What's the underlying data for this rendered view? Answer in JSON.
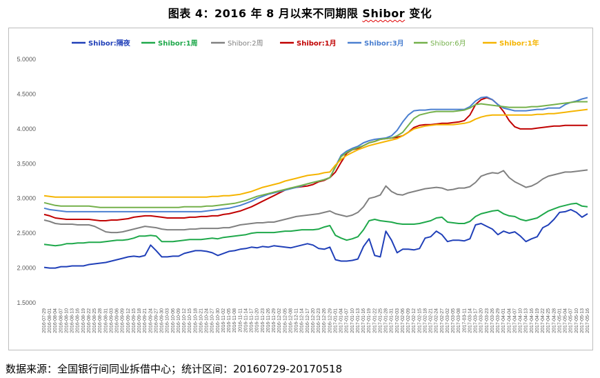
{
  "title": "图表 4：2016 年 8 月以来不同期限 Shibor 变化",
  "title_parts": {
    "prefix": "图表 4：2016 年 8 月以来不同期限 ",
    "squiggle": "Shibor",
    "suffix": " 变化"
  },
  "source_note": "数据来源：全国银行间同业拆借中心；统计区间：20160729-20170518",
  "colors": {
    "on": "#1f3fb8",
    "w1": "#1ea84a",
    "w2": "#808080",
    "m1": "#c00000",
    "m3": "#4a7fd0",
    "m6": "#74b04a",
    "y1": "#f5b400"
  },
  "chart_data": {
    "type": "line",
    "xlabel": "",
    "ylabel": "",
    "ylim": [
      1.5,
      5.0
    ],
    "yticks": [
      "1.5000",
      "2.0000",
      "2.5000",
      "3.0000",
      "3.5000",
      "4.0000",
      "4.5000",
      "5.0000"
    ],
    "grid": false,
    "legend_position": "top",
    "x": [
      "2016-07-29",
      "2016-08-01",
      "2016-08-04",
      "2016-08-07",
      "2016-08-10",
      "2016-08-13",
      "2016-08-16",
      "2016-08-19",
      "2016-08-22",
      "2016-08-25",
      "2016-08-28",
      "2016-08-31",
      "2016-09-03",
      "2016-09-06",
      "2016-09-09",
      "2016-09-12",
      "2016-09-15",
      "2016-09-18",
      "2016-09-21",
      "2016-09-24",
      "2016-09-27",
      "2016-09-30",
      "2016-10-03",
      "2016-10-06",
      "2016-10-09",
      "2016-10-12",
      "2016-10-15",
      "2016-10-18",
      "2016-10-21",
      "2016-10-24",
      "2016-10-27",
      "2016-10-30",
      "2016-11-02",
      "2016-11-05",
      "2016-11-08",
      "2016-11-11",
      "2016-11-14",
      "2016-11-17",
      "2016-11-20",
      "2016-11-23",
      "2016-11-26",
      "2016-11-29",
      "2016-12-02",
      "2016-12-05",
      "2016-12-08",
      "2016-12-11",
      "2016-12-14",
      "2016-12-17",
      "2016-12-20",
      "2016-12-23",
      "2016-12-26",
      "2016-12-29",
      "2017-01-01",
      "2017-01-04",
      "2017-01-07",
      "2017-01-10",
      "2017-01-13",
      "2017-01-16",
      "2017-01-19",
      "2017-01-22",
      "2017-01-25",
      "2017-01-28",
      "2017-01-31",
      "2017-02-03",
      "2017-02-06",
      "2017-02-09",
      "2017-02-12",
      "2017-02-15",
      "2017-02-18",
      "2017-02-21",
      "2017-02-24",
      "2017-02-27",
      "2017-03-02",
      "2017-03-05",
      "2017-03-08",
      "2017-03-11",
      "2017-03-14",
      "2017-03-17",
      "2017-03-20",
      "2017-03-23",
      "2017-03-26",
      "2017-03-29",
      "2017-04-01",
      "2017-04-04",
      "2017-04-07",
      "2017-04-10",
      "2017-04-13",
      "2017-04-16",
      "2017-04-19",
      "2017-04-22",
      "2017-04-25",
      "2017-04-28",
      "2017-05-01",
      "2017-05-04",
      "2017-05-07",
      "2017-05-10",
      "2017-05-13",
      "2017-05-16"
    ],
    "series": [
      {
        "name": "Shibor:隔夜",
        "color_key": "on",
        "values": [
          2.01,
          2.0,
          2.0,
          2.02,
          2.02,
          2.03,
          2.03,
          2.03,
          2.05,
          2.06,
          2.07,
          2.08,
          2.1,
          2.12,
          2.14,
          2.16,
          2.17,
          2.16,
          2.18,
          2.33,
          2.25,
          2.16,
          2.16,
          2.17,
          2.17,
          2.21,
          2.23,
          2.25,
          2.25,
          2.24,
          2.22,
          2.18,
          2.21,
          2.24,
          2.25,
          2.27,
          2.28,
          2.3,
          2.29,
          2.31,
          2.3,
          2.32,
          2.31,
          2.3,
          2.29,
          2.31,
          2.33,
          2.35,
          2.33,
          2.28,
          2.27,
          2.3,
          2.12,
          2.1,
          2.1,
          2.11,
          2.13,
          2.31,
          2.42,
          2.18,
          2.16,
          2.53,
          2.4,
          2.22,
          2.27,
          2.27,
          2.26,
          2.28,
          2.43,
          2.45,
          2.53,
          2.48,
          2.38,
          2.4,
          2.4,
          2.39,
          2.42,
          2.62,
          2.64,
          2.6,
          2.56,
          2.48,
          2.53,
          2.5,
          2.52,
          2.46,
          2.38,
          2.42,
          2.45,
          2.58,
          2.62,
          2.7,
          2.8,
          2.81,
          2.84,
          2.8,
          2.73,
          2.78
        ]
      },
      {
        "name": "Shibor:1周",
        "color_key": "w1",
        "values": [
          2.34,
          2.33,
          2.32,
          2.33,
          2.35,
          2.35,
          2.36,
          2.36,
          2.37,
          2.37,
          2.37,
          2.38,
          2.39,
          2.4,
          2.4,
          2.41,
          2.43,
          2.46,
          2.46,
          2.47,
          2.46,
          2.38,
          2.38,
          2.38,
          2.39,
          2.4,
          2.41,
          2.41,
          2.41,
          2.42,
          2.43,
          2.42,
          2.44,
          2.45,
          2.46,
          2.47,
          2.48,
          2.5,
          2.51,
          2.51,
          2.51,
          2.51,
          2.52,
          2.53,
          2.53,
          2.54,
          2.55,
          2.55,
          2.55,
          2.56,
          2.59,
          2.61,
          2.47,
          2.43,
          2.4,
          2.42,
          2.45,
          2.55,
          2.68,
          2.7,
          2.68,
          2.67,
          2.66,
          2.64,
          2.63,
          2.63,
          2.63,
          2.64,
          2.66,
          2.68,
          2.72,
          2.73,
          2.66,
          2.65,
          2.64,
          2.64,
          2.67,
          2.74,
          2.78,
          2.8,
          2.82,
          2.83,
          2.78,
          2.75,
          2.74,
          2.7,
          2.68,
          2.7,
          2.72,
          2.77,
          2.82,
          2.85,
          2.88,
          2.9,
          2.92,
          2.93,
          2.89,
          2.88
        ]
      },
      {
        "name": "Shibor:2周",
        "color_key": "w2",
        "values": [
          2.69,
          2.67,
          2.64,
          2.63,
          2.63,
          2.63,
          2.62,
          2.62,
          2.62,
          2.6,
          2.56,
          2.52,
          2.51,
          2.51,
          2.52,
          2.54,
          2.56,
          2.58,
          2.6,
          2.59,
          2.58,
          2.56,
          2.55,
          2.55,
          2.55,
          2.55,
          2.56,
          2.56,
          2.57,
          2.57,
          2.57,
          2.57,
          2.58,
          2.58,
          2.6,
          2.62,
          2.63,
          2.64,
          2.65,
          2.65,
          2.66,
          2.66,
          2.68,
          2.7,
          2.72,
          2.74,
          2.75,
          2.76,
          2.77,
          2.78,
          2.8,
          2.82,
          2.78,
          2.76,
          2.74,
          2.76,
          2.8,
          2.88,
          3.0,
          3.02,
          3.05,
          3.18,
          3.1,
          3.06,
          3.05,
          3.08,
          3.1,
          3.12,
          3.14,
          3.15,
          3.16,
          3.15,
          3.12,
          3.13,
          3.15,
          3.15,
          3.17,
          3.23,
          3.32,
          3.35,
          3.37,
          3.36,
          3.4,
          3.3,
          3.24,
          3.2,
          3.16,
          3.18,
          3.22,
          3.28,
          3.32,
          3.34,
          3.36,
          3.38,
          3.38,
          3.39,
          3.4,
          3.41
        ]
      },
      {
        "name": "Shibor:1月",
        "color_key": "m1",
        "values": [
          2.77,
          2.75,
          2.72,
          2.71,
          2.7,
          2.7,
          2.7,
          2.7,
          2.7,
          2.69,
          2.68,
          2.68,
          2.69,
          2.69,
          2.7,
          2.71,
          2.73,
          2.74,
          2.75,
          2.75,
          2.74,
          2.73,
          2.72,
          2.72,
          2.72,
          2.72,
          2.73,
          2.73,
          2.74,
          2.74,
          2.75,
          2.75,
          2.77,
          2.78,
          2.8,
          2.82,
          2.85,
          2.88,
          2.92,
          2.96,
          3.0,
          3.04,
          3.08,
          3.12,
          3.15,
          3.16,
          3.17,
          3.18,
          3.2,
          3.24,
          3.26,
          3.3,
          3.38,
          3.52,
          3.65,
          3.7,
          3.72,
          3.76,
          3.8,
          3.82,
          3.85,
          3.86,
          3.87,
          3.88,
          3.9,
          3.95,
          4.02,
          4.05,
          4.06,
          4.06,
          4.07,
          4.08,
          4.08,
          4.09,
          4.1,
          4.12,
          4.2,
          4.35,
          4.42,
          4.45,
          4.42,
          4.35,
          4.25,
          4.12,
          4.03,
          4.0,
          4.0,
          4.0,
          4.01,
          4.02,
          4.03,
          4.04,
          4.04,
          4.05,
          4.05,
          4.05,
          4.05,
          4.05
        ]
      },
      {
        "name": "Shibor:3月",
        "color_key": "m3",
        "values": [
          2.86,
          2.84,
          2.83,
          2.82,
          2.81,
          2.81,
          2.81,
          2.81,
          2.81,
          2.81,
          2.81,
          2.81,
          2.81,
          2.81,
          2.81,
          2.81,
          2.81,
          2.81,
          2.81,
          2.81,
          2.81,
          2.81,
          2.81,
          2.81,
          2.81,
          2.81,
          2.81,
          2.81,
          2.81,
          2.82,
          2.83,
          2.84,
          2.85,
          2.86,
          2.88,
          2.9,
          2.93,
          2.96,
          3.0,
          3.03,
          3.06,
          3.08,
          3.1,
          3.12,
          3.14,
          3.16,
          3.18,
          3.21,
          3.23,
          3.25,
          3.27,
          3.3,
          3.46,
          3.62,
          3.68,
          3.72,
          3.75,
          3.8,
          3.83,
          3.85,
          3.86,
          3.87,
          3.9,
          3.98,
          4.1,
          4.2,
          4.26,
          4.27,
          4.27,
          4.28,
          4.28,
          4.28,
          4.28,
          4.28,
          4.28,
          4.28,
          4.32,
          4.4,
          4.45,
          4.46,
          4.42,
          4.35,
          4.3,
          4.28,
          4.26,
          4.26,
          4.26,
          4.27,
          4.28,
          4.28,
          4.3,
          4.3,
          4.3,
          4.35,
          4.38,
          4.4,
          4.43,
          4.45
        ]
      },
      {
        "name": "Shibor:6月",
        "color_key": "m6",
        "values": [
          2.94,
          2.92,
          2.9,
          2.89,
          2.89,
          2.89,
          2.89,
          2.89,
          2.89,
          2.88,
          2.87,
          2.87,
          2.87,
          2.87,
          2.87,
          2.87,
          2.87,
          2.87,
          2.87,
          2.87,
          2.87,
          2.87,
          2.87,
          2.87,
          2.87,
          2.88,
          2.88,
          2.88,
          2.88,
          2.89,
          2.89,
          2.9,
          2.91,
          2.92,
          2.93,
          2.95,
          2.97,
          3.0,
          3.03,
          3.05,
          3.07,
          3.09,
          3.11,
          3.13,
          3.15,
          3.17,
          3.19,
          3.21,
          3.23,
          3.25,
          3.27,
          3.3,
          3.45,
          3.6,
          3.66,
          3.7,
          3.73,
          3.76,
          3.8,
          3.82,
          3.85,
          3.86,
          3.87,
          3.9,
          3.95,
          4.05,
          4.15,
          4.2,
          4.22,
          4.24,
          4.25,
          4.25,
          4.25,
          4.25,
          4.26,
          4.27,
          4.3,
          4.35,
          4.36,
          4.35,
          4.34,
          4.33,
          4.32,
          4.31,
          4.31,
          4.31,
          4.31,
          4.32,
          4.32,
          4.33,
          4.34,
          4.35,
          4.36,
          4.37,
          4.38,
          4.39,
          4.39,
          4.39
        ]
      },
      {
        "name": "Shibor:1年",
        "color_key": "y1",
        "values": [
          3.04,
          3.03,
          3.02,
          3.02,
          3.02,
          3.02,
          3.02,
          3.02,
          3.02,
          3.02,
          3.02,
          3.02,
          3.02,
          3.02,
          3.02,
          3.02,
          3.02,
          3.02,
          3.02,
          3.02,
          3.02,
          3.02,
          3.02,
          3.02,
          3.02,
          3.02,
          3.02,
          3.02,
          3.02,
          3.02,
          3.03,
          3.03,
          3.04,
          3.04,
          3.05,
          3.06,
          3.08,
          3.1,
          3.13,
          3.16,
          3.18,
          3.2,
          3.22,
          3.25,
          3.27,
          3.29,
          3.31,
          3.33,
          3.34,
          3.35,
          3.37,
          3.38,
          3.48,
          3.56,
          3.62,
          3.66,
          3.7,
          3.73,
          3.76,
          3.78,
          3.8,
          3.82,
          3.84,
          3.86,
          3.9,
          3.95,
          4.0,
          4.02,
          4.04,
          4.05,
          4.06,
          4.06,
          4.06,
          4.06,
          4.07,
          4.08,
          4.1,
          4.14,
          4.17,
          4.19,
          4.2,
          4.2,
          4.2,
          4.2,
          4.2,
          4.2,
          4.2,
          4.2,
          4.21,
          4.21,
          4.22,
          4.22,
          4.23,
          4.24,
          4.25,
          4.26,
          4.27,
          4.28
        ]
      }
    ]
  }
}
